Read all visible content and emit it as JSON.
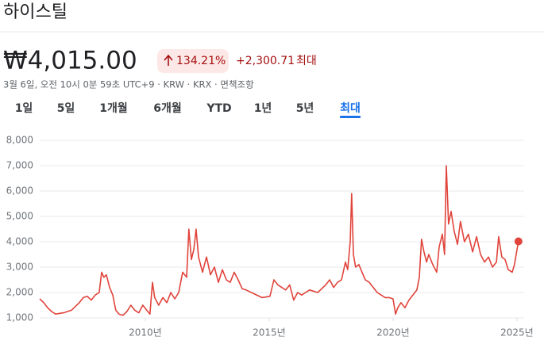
{
  "header": {
    "title": "하이스틸",
    "price": "₩4,015.00",
    "change_pct": "134.21%",
    "change_abs": "+2,300.71",
    "period": "최대",
    "meta": "3월 6일, 오전 10시 0분 59초 UTC+9 · KRW · KRX · 면책조항"
  },
  "tabs": [
    "1일",
    "5일",
    "1개월",
    "6개월",
    "YTD",
    "1년",
    "5년",
    "최대"
  ],
  "selected_tab": 7,
  "chart_data": {
    "type": "line",
    "x": [
      2005.74,
      2005.9,
      2006.06,
      2006.22,
      2006.38,
      2006.7,
      2007.02,
      2007.34,
      2007.5,
      2007.66,
      2007.82,
      2007.98,
      2008.14,
      2008.24,
      2008.33,
      2008.43,
      2008.56,
      2008.69,
      2008.81,
      2008.94,
      2009.1,
      2009.26,
      2009.42,
      2009.58,
      2009.74,
      2009.9,
      2010.06,
      2010.19,
      2010.29,
      2010.38,
      2010.54,
      2010.71,
      2010.87,
      2011.03,
      2011.19,
      2011.35,
      2011.51,
      2011.67,
      2011.76,
      2011.86,
      2011.96,
      2012.05,
      2012.15,
      2012.31,
      2012.47,
      2012.63,
      2012.79,
      2012.95,
      2013.11,
      2013.27,
      2013.43,
      2013.59,
      2013.75,
      2013.91,
      2014.07,
      2014.39,
      2014.71,
      2015.03,
      2015.19,
      2015.35,
      2015.51,
      2015.67,
      2015.83,
      2015.99,
      2016.15,
      2016.31,
      2016.63,
      2016.96,
      2017.28,
      2017.44,
      2017.6,
      2017.76,
      2017.92,
      2018.08,
      2018.17,
      2018.27,
      2018.33,
      2018.4,
      2018.49,
      2018.62,
      2018.75,
      2018.88,
      2019.04,
      2019.2,
      2019.36,
      2019.52,
      2019.68,
      2019.84,
      2020.0,
      2020.1,
      2020.19,
      2020.32,
      2020.48,
      2020.64,
      2020.8,
      2020.96,
      2021.06,
      2021.15,
      2021.25,
      2021.35,
      2021.44,
      2021.6,
      2021.76,
      2021.86,
      2021.99,
      2022.08,
      2022.15,
      2022.24,
      2022.34,
      2022.47,
      2022.6,
      2022.72,
      2022.88,
      2023.04,
      2023.21,
      2023.37,
      2023.53,
      2023.69,
      2023.85,
      2024.01,
      2024.17,
      2024.26,
      2024.39,
      2024.52,
      2024.65,
      2024.81,
      2024.9,
      2025.06
    ],
    "series": [
      {
        "color": "#e0443b",
        "values": [
          1750,
          1600,
          1400,
          1250,
          1150,
          1200,
          1300,
          1600,
          1800,
          1850,
          1700,
          1900,
          2000,
          2800,
          2600,
          2700,
          2200,
          1900,
          1300,
          1150,
          1100,
          1250,
          1500,
          1300,
          1200,
          1500,
          1300,
          1150,
          2400,
          1800,
          1500,
          1800,
          1600,
          2000,
          1750,
          2000,
          2800,
          2600,
          4500,
          3300,
          3700,
          4500,
          3400,
          2800,
          3400,
          2700,
          3000,
          2400,
          2900,
          2500,
          2400,
          2800,
          2500,
          2150,
          2100,
          1950,
          1800,
          1850,
          2500,
          2300,
          2200,
          2100,
          2300,
          1700,
          2000,
          1900,
          2100,
          2000,
          2300,
          2500,
          2200,
          2400,
          2500,
          3200,
          2900,
          4000,
          5900,
          3500,
          3000,
          3100,
          2800,
          2500,
          2400,
          2200,
          2000,
          1900,
          1800,
          1800,
          1750,
          1150,
          1400,
          1600,
          1400,
          1700,
          1900,
          2100,
          2600,
          4100,
          3600,
          3200,
          3500,
          3100,
          2800,
          3800,
          4300,
          3500,
          7000,
          4700,
          5200,
          4400,
          3900,
          4800,
          4000,
          4300,
          3600,
          4200,
          3500,
          3200,
          3400,
          3000,
          3200,
          4200,
          3400,
          3300,
          2900,
          2800,
          3100,
          4015
        ]
      }
    ],
    "xlim": [
      2005.74,
      2025.29
    ],
    "xticks": [
      {
        "value": 2010,
        "label": "2010년"
      },
      {
        "value": 2015,
        "label": "2015년"
      },
      {
        "value": 2020,
        "label": "2020년"
      },
      {
        "value": 2025,
        "label": "2025년"
      }
    ],
    "ylim": [
      1000,
      8000
    ],
    "yticks": [
      {
        "value": 1000,
        "label": "1,000"
      },
      {
        "value": 2000,
        "label": "2,000"
      },
      {
        "value": 3000,
        "label": "3,000"
      },
      {
        "value": 4000,
        "label": "4,000"
      },
      {
        "value": 5000,
        "label": "5,000"
      },
      {
        "value": 6000,
        "label": "6,000"
      },
      {
        "value": 7000,
        "label": "7,000"
      },
      {
        "value": 8000,
        "label": "8,000"
      }
    ],
    "grid": true
  }
}
